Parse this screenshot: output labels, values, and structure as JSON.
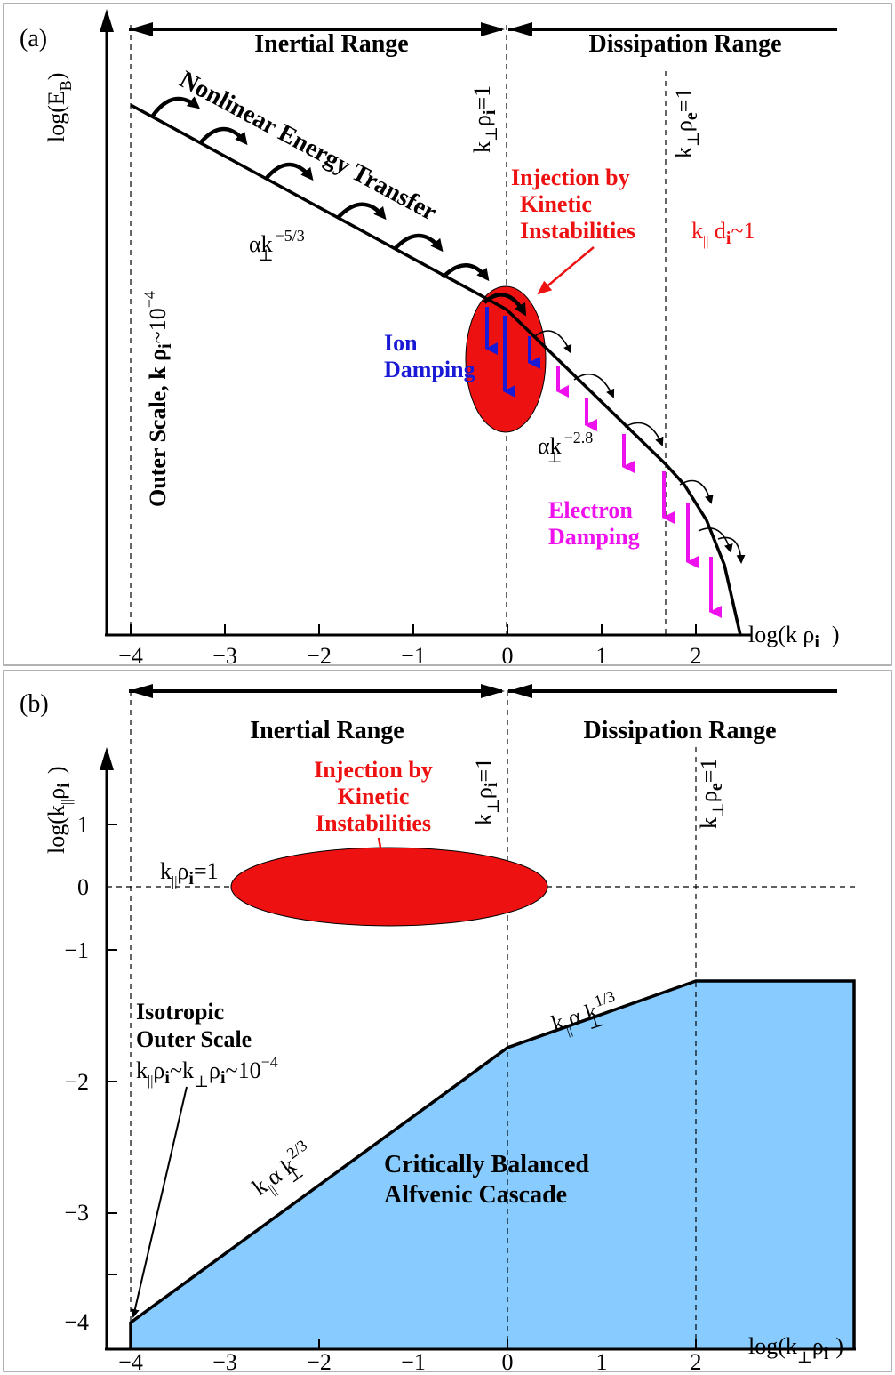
{
  "colors": {
    "injection": "#ee1111",
    "ion": "#1a1ad6",
    "electron": "#ee11ee",
    "cascade": "#88ccff",
    "ink": "#000000"
  },
  "panel_a": {
    "label": "(a)",
    "inertial_range": "Inertial Range",
    "dissipation_range": "Dissipation Range",
    "y_label": "log(E",
    "y_label_sub": "B",
    "y_label_close": ")",
    "x_label": "log(k ρ",
    "x_label_sub": "i",
    "x_label_close": ")",
    "x_ticks": [
      "−4",
      "−3",
      "−2",
      "−1",
      "0",
      "1",
      "2"
    ],
    "vline_ion": {
      "pre": "k",
      "sub1": "⊥",
      "mid": "ρ",
      "sub2": "i",
      "post": "=1"
    },
    "vline_electron": {
      "pre": "k",
      "sub1": "⊥",
      "mid": "ρ",
      "sub2": "e",
      "post": "=1"
    },
    "outer_scale": "Outer Scale, k ρ",
    "outer_scale_sub": "i",
    "outer_scale_post": "~10",
    "outer_scale_exp": "−4",
    "nonlinear_transfer": "Nonlinear Energy Transfer",
    "slope1_alpha": "αk",
    "slope1_sub": "⊥",
    "slope1_exp": "−5/3",
    "slope2_alpha": "αk",
    "slope2_sub": "⊥",
    "slope2_exp": "−2.8",
    "injection_lines": [
      "Injection by",
      "Kinetic",
      "Instabilities"
    ],
    "kd": {
      "k": "k",
      "par": "||",
      "d": " d",
      "i": "i",
      "post": "~1"
    },
    "ion_damping": [
      "Ion",
      "Damping"
    ],
    "electron_damping": [
      "Electron",
      "Damping"
    ]
  },
  "panel_b": {
    "label": "(b)",
    "inertial_range": "Inertial Range",
    "dissipation_range": "Dissipation Range",
    "y_label": "log(k",
    "y_label_sub": "||",
    "y_label_rho": "ρ",
    "y_label_i": "i",
    "y_label_close": ")",
    "x_label": "log(k",
    "x_label_sub": "⊥",
    "x_label_rho": "ρ",
    "x_label_i": "i",
    "x_label_close": ")",
    "x_ticks": [
      "−4",
      "−3",
      "−2",
      "−1",
      "0",
      "1",
      "2"
    ],
    "y_ticks": [
      "1",
      "0",
      "−1",
      "−2",
      "−3",
      "−4"
    ],
    "vline_ion": {
      "pre": "k",
      "sub1": "⊥",
      "mid": "ρ",
      "sub2": "i",
      "post": "=1"
    },
    "vline_electron": {
      "pre": "k",
      "sub1": "⊥",
      "mid": "ρ",
      "sub2": "e",
      "post": "=1"
    },
    "injection_lines": [
      "Injection by",
      "Kinetic",
      "Instabilities"
    ],
    "kpar_label": {
      "k": "k",
      "sub": "||",
      "rho": "ρ",
      "i": "i",
      "post": "=1"
    },
    "isotropic": [
      "Isotropic",
      "Outer Scale"
    ],
    "isotropic_eq": {
      "k1": "k",
      "s1": "||",
      "r1": "ρ",
      "i1": "i",
      "t": "~k",
      "s2": "⊥",
      "r2": "ρ",
      "i2": "i",
      "post": "~10",
      "exp": "−4"
    },
    "slope23": {
      "k": "k",
      "s": "||",
      "a": "α k",
      "s2": "⊥",
      "exp": "2/3"
    },
    "slope13": {
      "k": "k",
      "s": "||",
      "a": "α k",
      "s2": "⊥",
      "exp": "1/3"
    },
    "cascade_lines": [
      "Critically Balanced",
      "Alfvenic Cascade"
    ]
  }
}
